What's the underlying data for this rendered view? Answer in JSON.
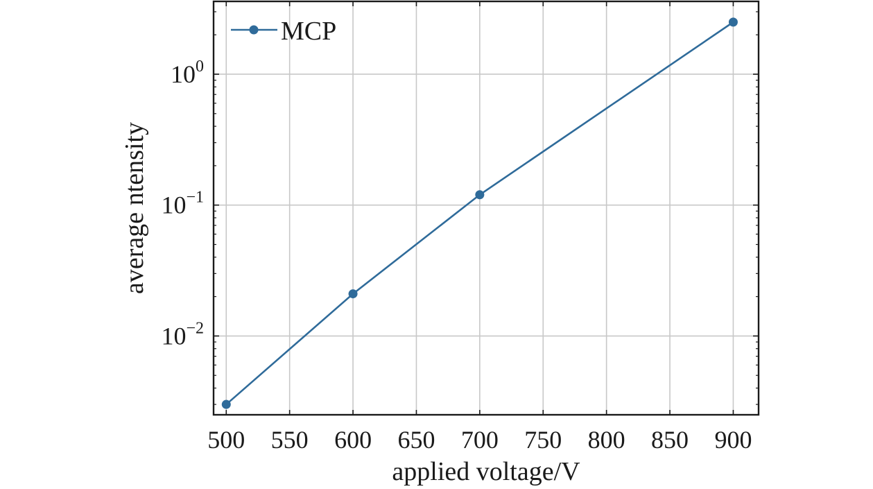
{
  "chart_data": {
    "type": "line",
    "title": "",
    "xlabel": "applied voltage/V",
    "ylabel": "average ntensity",
    "xlim": [
      490,
      920
    ],
    "ylim": [
      0.0025,
      3.6
    ],
    "yscale": "log",
    "grid": true,
    "legend_position": "top-left",
    "x_ticks": [
      500,
      550,
      600,
      650,
      700,
      750,
      800,
      850,
      900
    ],
    "x_tick_labels": [
      "500",
      "550",
      "600",
      "650",
      "700",
      "750",
      "800",
      "850",
      "900"
    ],
    "y_ticks": [
      0.01,
      0.1,
      1
    ],
    "y_tick_labels": [
      {
        "base": "10",
        "exp": "−2"
      },
      {
        "base": "10",
        "exp": "−1"
      },
      {
        "base": "10",
        "exp": "0"
      }
    ],
    "series": [
      {
        "name": "MCP",
        "color": "#2f6b9a",
        "x": [
          500,
          600,
          700,
          900
        ],
        "y": [
          0.003,
          0.021,
          0.12,
          2.5
        ]
      }
    ]
  }
}
